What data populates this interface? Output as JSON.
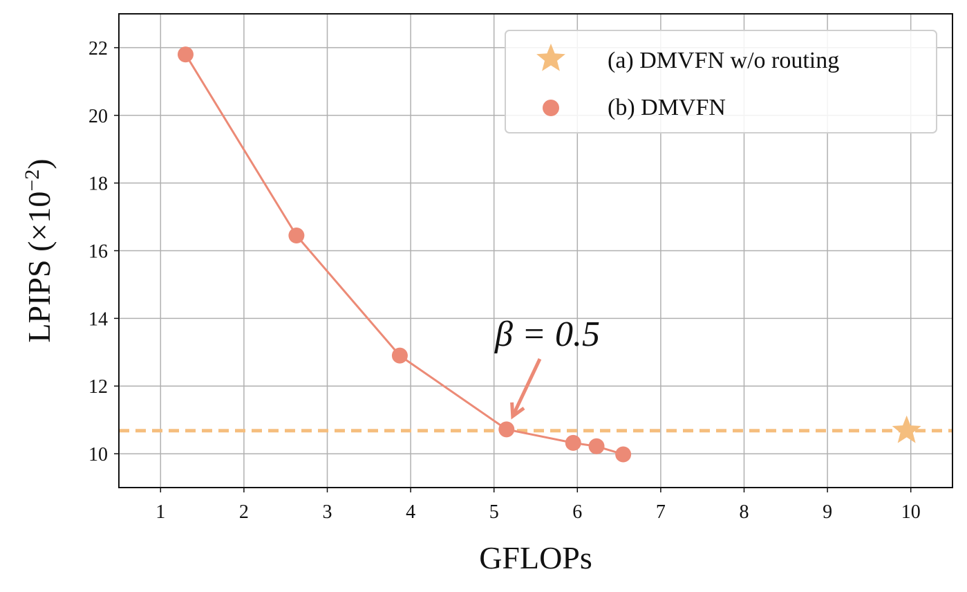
{
  "chart_data": {
    "type": "scatter",
    "xlabel": "GFLOPs",
    "ylabel": "LPIPS (×10",
    "ylabel_exponent": "−2",
    "ylabel_close": ")",
    "xlim": [
      0.5,
      10.5
    ],
    "ylim": [
      9.0,
      23.0
    ],
    "x_ticks": [
      1,
      2,
      3,
      4,
      5,
      6,
      7,
      8,
      9,
      10
    ],
    "y_ticks": [
      10,
      12,
      14,
      16,
      18,
      20,
      22
    ],
    "grid": true,
    "legend_position": "top-right",
    "series": [
      {
        "name": "(a) DMVFN w/o routing",
        "marker": "star",
        "color": "#f5be7e",
        "points": [
          {
            "x": 9.95,
            "y": 10.68
          }
        ],
        "reference_line_y": 10.68
      },
      {
        "name": "(b) DMVFN",
        "marker": "circle",
        "color": "#ec8a76",
        "connected": true,
        "points": [
          {
            "x": 1.3,
            "y": 21.8
          },
          {
            "x": 2.63,
            "y": 16.45
          },
          {
            "x": 3.87,
            "y": 12.9
          },
          {
            "x": 5.15,
            "y": 10.72
          },
          {
            "x": 5.95,
            "y": 10.32
          },
          {
            "x": 6.23,
            "y": 10.22
          },
          {
            "x": 6.55,
            "y": 9.98
          }
        ]
      }
    ],
    "annotation": {
      "text": "β = 0.5",
      "target": {
        "x": 5.15,
        "y": 10.72
      },
      "color": "#ec8a76"
    }
  }
}
